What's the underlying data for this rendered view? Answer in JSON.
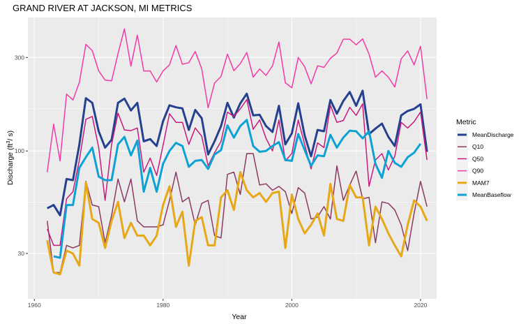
{
  "chart_data": {
    "type": "line",
    "title": "GRAND RIVER AT JACKSON, MI  METRICS",
    "xlabel": "Year",
    "ylabel": "Discharge (ft³/s)",
    "ylabel_parts": {
      "main": "Discharge (ft",
      "sup": "3",
      "tail": "/ s)"
    },
    "y_scale": "log",
    "xlim": [
      1959,
      2022.5
    ],
    "ylim": [
      17.6,
      480
    ],
    "x_ticks": [
      1960,
      1980,
      2000,
      2020
    ],
    "y_ticks": [
      30,
      100,
      300
    ],
    "grid": true,
    "legend_title": "Metric",
    "legend_position": "right",
    "series": [
      {
        "name": "MeanDischarge",
        "color": "#24408e",
        "width": 3.0,
        "x": [
          1962,
          1963,
          1964,
          1965,
          1966,
          1967,
          1968,
          1969,
          1970,
          1971,
          1972,
          1973,
          1974,
          1975,
          1976,
          1977,
          1978,
          1979,
          1980,
          1981,
          1982,
          1983,
          1984,
          1985,
          1986,
          1987,
          1988,
          1989,
          1990,
          1991,
          1992,
          1993,
          1994,
          1995,
          1996,
          1997,
          1998,
          1999,
          2000,
          2001,
          2002,
          2003,
          2004,
          2005,
          2006,
          2007,
          2008,
          2009,
          2010,
          2011,
          2012,
          2013,
          2014,
          2015,
          2016,
          2017,
          2018,
          2019,
          2020,
          2021
        ],
        "values": [
          51,
          53,
          47,
          72,
          71,
          108,
          186,
          176,
          126,
          104,
          114,
          176,
          185,
          161,
          176,
          112,
          115,
          106,
          142,
          171,
          167,
          165,
          128,
          162,
          147,
          96,
          112,
          134,
          176,
          148,
          175,
          196,
          152,
          153,
          134,
          125,
          170,
          108,
          123,
          175,
          120,
          94,
          128,
          126,
          182,
          155,
          180,
          200,
          170,
          203,
          122,
          130,
          138,
          118,
          106,
          152,
          160,
          164,
          173,
          99
        ]
      },
      {
        "name": "Q10",
        "color": "#8b3a62",
        "width": 1.5,
        "x": [
          1962,
          1963,
          1964,
          1965,
          1966,
          1967,
          1968,
          1969,
          1970,
          1971,
          1972,
          1973,
          1974,
          1975,
          1976,
          1977,
          1978,
          1979,
          1980,
          1981,
          1982,
          1983,
          1984,
          1985,
          1986,
          1987,
          1988,
          1989,
          1990,
          1991,
          1992,
          1993,
          1994,
          1995,
          1996,
          1997,
          1998,
          1999,
          2000,
          2001,
          2002,
          2003,
          2004,
          2005,
          2006,
          2007,
          2008,
          2009,
          2010,
          2011,
          2012,
          2013,
          2014,
          2015,
          2016,
          2017,
          2018,
          2019,
          2020,
          2021
        ],
        "values": [
          44,
          24,
          24,
          33,
          32,
          33,
          70,
          53,
          52,
          34,
          47,
          72,
          55,
          72,
          44,
          41,
          41,
          41,
          42,
          56,
          78,
          55,
          58,
          42,
          54,
          56,
          37,
          36,
          76,
          78,
          60,
          97,
          97,
          67,
          68,
          63,
          66,
          62,
          48,
          65,
          61,
          45,
          46,
          52,
          45,
          84,
          56,
          67,
          79,
          57,
          58,
          34,
          55,
          54,
          50,
          42,
          31,
          48,
          70,
          52
        ]
      },
      {
        "name": "Q50",
        "color": "#c51b7d",
        "width": 1.5,
        "x": [
          1962,
          1963,
          1964,
          1965,
          1966,
          1967,
          1968,
          1969,
          1970,
          1971,
          1972,
          1973,
          1974,
          1975,
          1976,
          1977,
          1978,
          1979,
          1980,
          1981,
          1982,
          1983,
          1984,
          1985,
          1986,
          1987,
          1988,
          1989,
          1990,
          1991,
          1992,
          1993,
          1994,
          1995,
          1996,
          1997,
          1998,
          1999,
          2000,
          2001,
          2002,
          2003,
          2004,
          2005,
          2006,
          2007,
          2008,
          2009,
          2010,
          2011,
          2012,
          2013,
          2014,
          2015,
          2016,
          2017,
          2018,
          2019,
          2020,
          2021
        ],
        "values": [
          40,
          33,
          33,
          57,
          62,
          90,
          145,
          150,
          104,
          56,
          108,
          156,
          128,
          127,
          131,
          78,
          92,
          75,
          107,
          155,
          140,
          140,
          108,
          131,
          119,
          84,
          98,
          112,
          158,
          150,
          164,
          183,
          129,
          144,
          116,
          100,
          144,
          89,
          97,
          144,
          108,
          81,
          110,
          104,
          171,
          140,
          143,
          167,
          152,
          174,
          66,
          90,
          97,
          80,
          94,
          140,
          131,
          141,
          158,
          90
        ]
      },
      {
        "name": "Q90",
        "color": "#f03ba9",
        "width": 1.5,
        "x": [
          1962,
          1963,
          1964,
          1965,
          1966,
          1967,
          1968,
          1969,
          1970,
          1971,
          1972,
          1973,
          1974,
          1975,
          1976,
          1977,
          1978,
          1979,
          1980,
          1981,
          1982,
          1983,
          1984,
          1985,
          1986,
          1987,
          1988,
          1989,
          1990,
          1991,
          1992,
          1993,
          1994,
          1995,
          1996,
          1997,
          1998,
          1999,
          2000,
          2001,
          2002,
          2003,
          2004,
          2005,
          2006,
          2007,
          2008,
          2009,
          2010,
          2011,
          2012,
          2013,
          2014,
          2015,
          2016,
          2017,
          2018,
          2019,
          2020,
          2021
        ],
        "values": [
          78,
          137,
          89,
          195,
          182,
          224,
          350,
          325,
          256,
          230,
          228,
          314,
          420,
          271,
          390,
          256,
          256,
          225,
          256,
          275,
          345,
          277,
          282,
          322,
          263,
          166,
          222,
          240,
          312,
          257,
          279,
          318,
          238,
          262,
          243,
          272,
          360,
          223,
          210,
          300,
          269,
          220,
          272,
          267,
          297,
          316,
          372,
          372,
          348,
          373,
          312,
          238,
          256,
          238,
          212,
          295,
          324,
          275,
          342,
          184
        ]
      },
      {
        "name": "MAM7",
        "color": "#e6a817",
        "width": 3.0,
        "x": [
          1962,
          1963,
          1964,
          1965,
          1966,
          1967,
          1968,
          1969,
          1970,
          1971,
          1972,
          1973,
          1974,
          1975,
          1976,
          1977,
          1978,
          1979,
          1980,
          1981,
          1982,
          1983,
          1984,
          1985,
          1986,
          1987,
          1988,
          1989,
          1990,
          1991,
          1992,
          1993,
          1994,
          1995,
          1996,
          1997,
          1998,
          1999,
          2000,
          2001,
          2002,
          2003,
          2004,
          2005,
          2006,
          2007,
          2008,
          2009,
          2010,
          2011,
          2012,
          2013,
          2014,
          2015,
          2016,
          2017,
          2018,
          2019,
          2020,
          2021
        ],
        "values": [
          35,
          24,
          23.5,
          31,
          30,
          26,
          69,
          45,
          43,
          32,
          44,
          55,
          36,
          43,
          37,
          37,
          33,
          37,
          53,
          66,
          41,
          49,
          26,
          44,
          46,
          33,
          33,
          58,
          63,
          50,
          78,
          63,
          58,
          61,
          55,
          61,
          62,
          32,
          60,
          45,
          38,
          42,
          48,
          37,
          68,
          45,
          44,
          67,
          58,
          58,
          33,
          52,
          45,
          38,
          33,
          29,
          42,
          56,
          52,
          44
        ]
      },
      {
        "name": "MeanBaseflow",
        "color": "#0ca2d3",
        "width": 3.0,
        "x": [
          1963,
          1964,
          1965,
          1966,
          1967,
          1968,
          1969,
          1970,
          1971,
          1972,
          1973,
          1974,
          1975,
          1976,
          1977,
          1978,
          1979,
          1980,
          1981,
          1982,
          1983,
          1984,
          1985,
          1986,
          1987,
          1988,
          1989,
          1990,
          1991,
          1992,
          1993,
          1994,
          1995,
          1996,
          1997,
          1998,
          1999,
          2000,
          2001,
          2002,
          2003,
          2004,
          2005,
          2006,
          2007,
          2008,
          2009,
          2010,
          2011,
          2012,
          2013,
          2014,
          2015,
          2016,
          2017,
          2018,
          2019,
          2020
        ],
        "values": [
          29,
          28.5,
          53,
          53,
          82,
          93,
          104,
          74,
          71,
          71,
          108,
          118,
          95,
          113,
          62,
          82,
          62,
          86,
          100,
          110,
          106,
          83,
          89,
          90,
          81,
          96,
          101,
          135,
          117,
          134,
          144,
          106,
          99,
          100,
          106,
          111,
          90,
          89,
          122,
          101,
          84,
          95,
          94,
          121,
          104,
          117,
          127,
          126,
          116,
          126,
          86,
          73,
          100,
          87,
          83,
          93,
          98,
          109
        ]
      }
    ]
  }
}
